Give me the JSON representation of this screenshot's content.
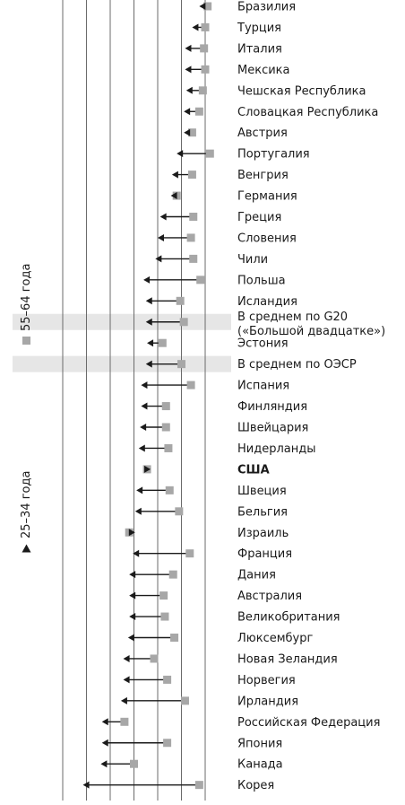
{
  "colors": {
    "square": "#a7a7a7",
    "arrow": "#1a1a1a",
    "gridline": "#6b6b6b",
    "highlight": "#e6e6e6"
  },
  "legend": {
    "older": "55–64 года",
    "younger": "25–34 года"
  },
  "chart_data": {
    "type": "dumbbell-arrow",
    "description_of_marks": "square = 55–64, arrowhead = 25–34",
    "xlim": [
      0,
      7
    ],
    "gridlines": [
      1,
      2,
      3,
      4,
      5,
      6
    ],
    "grid": true,
    "highlighted": [
      "В среднем по G20 («Большой двадцатке»)",
      "В среднем по ОЭСР"
    ],
    "bold": [
      "США"
    ],
    "rows": [
      {
        "country": "Бразилия",
        "age_55_64": 6.1,
        "age_25_34": 5.75
      },
      {
        "country": "Турция",
        "age_55_64": 6.0,
        "age_25_34": 5.45
      },
      {
        "country": "Италия",
        "age_55_64": 5.95,
        "age_25_34": 5.15
      },
      {
        "country": "Мексика",
        "age_55_64": 6.0,
        "age_25_34": 5.15
      },
      {
        "country": "Чешская Республика",
        "age_55_64": 5.9,
        "age_25_34": 5.2
      },
      {
        "country": "Словацкая Республика",
        "age_55_64": 5.75,
        "age_25_34": 5.1
      },
      {
        "country": "Австрия",
        "age_55_64": 5.45,
        "age_25_34": 5.1
      },
      {
        "country": "Португалия",
        "age_55_64": 6.2,
        "age_25_34": 4.8
      },
      {
        "country": "Венгрия",
        "age_55_64": 5.45,
        "age_25_34": 4.6
      },
      {
        "country": "Германия",
        "age_55_64": 4.8,
        "age_25_34": 4.55
      },
      {
        "country": "Греция",
        "age_55_64": 5.5,
        "age_25_34": 4.1
      },
      {
        "country": "Словения",
        "age_55_64": 5.4,
        "age_25_34": 4.0
      },
      {
        "country": "Чили",
        "age_55_64": 5.5,
        "age_25_34": 3.9
      },
      {
        "country": "Польша",
        "age_55_64": 5.8,
        "age_25_34": 3.4
      },
      {
        "country": "Исландия",
        "age_55_64": 4.95,
        "age_25_34": 3.5
      },
      {
        "country": "В среднем по G20 («Большой двадцатке»)",
        "age_55_64": 5.1,
        "age_25_34": 3.5
      },
      {
        "country": "Эстония",
        "age_55_64": 4.2,
        "age_25_34": 3.55
      },
      {
        "country": "В среднем по ОЭСР",
        "age_55_64": 5.0,
        "age_25_34": 3.5
      },
      {
        "country": "Испания",
        "age_55_64": 5.4,
        "age_25_34": 3.3
      },
      {
        "country": "Финляндия",
        "age_55_64": 4.35,
        "age_25_34": 3.3
      },
      {
        "country": "Швейцария",
        "age_55_64": 4.35,
        "age_25_34": 3.25
      },
      {
        "country": "Нидерланды",
        "age_55_64": 4.45,
        "age_25_34": 3.2
      },
      {
        "country": "США",
        "age_55_64": 3.55,
        "age_25_34": 3.7
      },
      {
        "country": "Швеция",
        "age_55_64": 4.5,
        "age_25_34": 3.1
      },
      {
        "country": "Бельгия",
        "age_55_64": 4.9,
        "age_25_34": 3.05
      },
      {
        "country": "Израиль",
        "age_55_64": 2.8,
        "age_25_34": 3.05
      },
      {
        "country": "Франция",
        "age_55_64": 5.35,
        "age_25_34": 2.95
      },
      {
        "country": "Дания",
        "age_55_64": 4.65,
        "age_25_34": 2.8
      },
      {
        "country": "Австралия",
        "age_55_64": 4.25,
        "age_25_34": 2.8
      },
      {
        "country": "Великобритания",
        "age_55_64": 4.3,
        "age_25_34": 2.8
      },
      {
        "country": "Люксембург",
        "age_55_64": 4.7,
        "age_25_34": 2.75
      },
      {
        "country": "Новая Зеландия",
        "age_55_64": 3.85,
        "age_25_34": 2.55
      },
      {
        "country": "Норвегия",
        "age_55_64": 4.4,
        "age_25_34": 2.55
      },
      {
        "country": "Ирландия",
        "age_55_64": 5.15,
        "age_25_34": 2.45
      },
      {
        "country": "Российская Федерация",
        "age_55_64": 2.6,
        "age_25_34": 1.65
      },
      {
        "country": "Япония",
        "age_55_64": 4.4,
        "age_25_34": 1.65
      },
      {
        "country": "Канада",
        "age_55_64": 3.0,
        "age_25_34": 1.6
      },
      {
        "country": "Корея",
        "age_55_64": 5.75,
        "age_25_34": 0.85
      }
    ]
  }
}
